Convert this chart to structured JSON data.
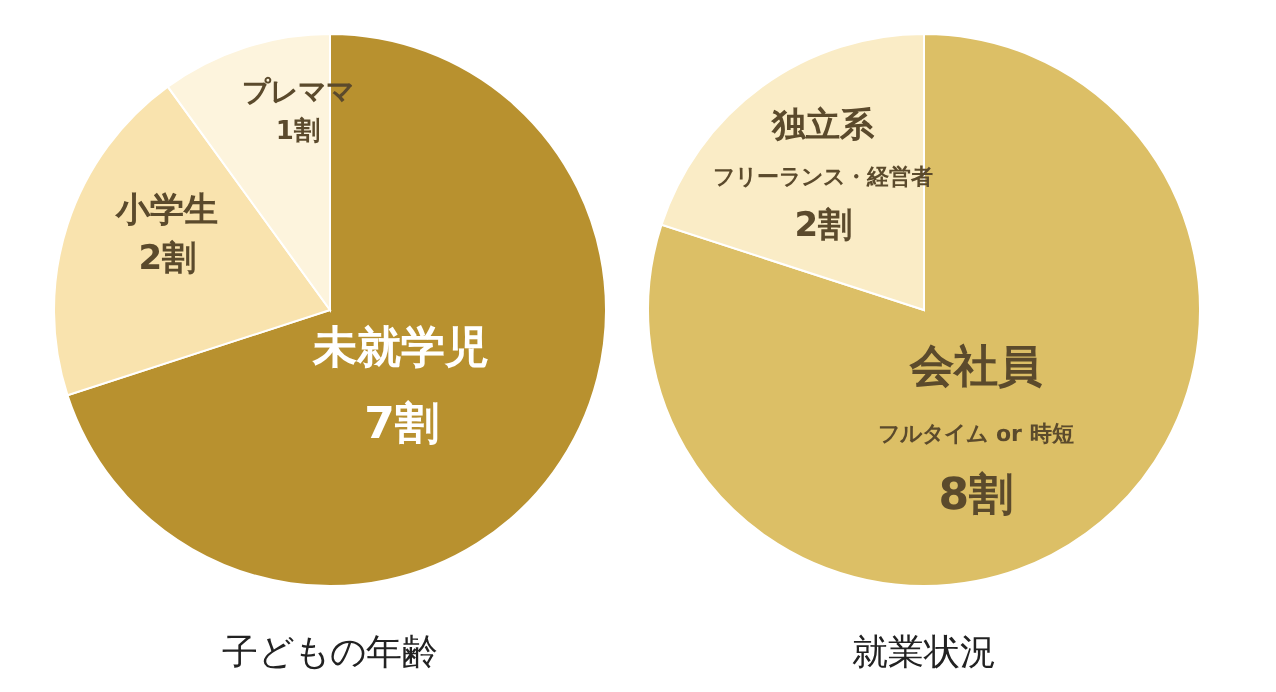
{
  "chart_data": [
    {
      "type": "pie",
      "title": "子どもの年齢",
      "categories": [
        "未就学児",
        "小学生",
        "プレママ"
      ],
      "values": [
        7,
        2,
        1
      ],
      "value_labels": [
        "7割",
        "2割",
        "1割"
      ],
      "colors": [
        "#b8912f",
        "#f9e3ae",
        "#fdf4dd"
      ]
    },
    {
      "type": "pie",
      "title": "就業状況",
      "categories": [
        "会社員",
        "独立系"
      ],
      "annotations": [
        "フルタイム or 時短",
        "フリーランス・経営者"
      ],
      "values": [
        8,
        2
      ],
      "value_labels": [
        "8割",
        "2割"
      ],
      "colors": [
        "#dcbf66",
        "#faecc6"
      ]
    }
  ]
}
